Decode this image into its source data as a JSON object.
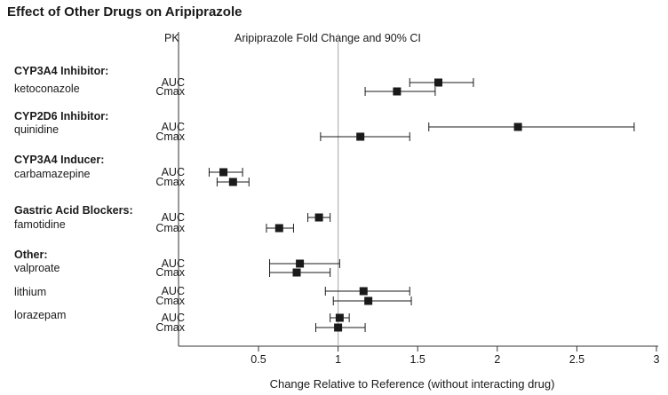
{
  "chart_data": {
    "type": "forest",
    "title": "Effect of Other Drugs on Aripiprazole",
    "pk_header": "PK",
    "ci_header": "Aripiprazole Fold Change and 90% CI",
    "xlabel": "Change Relative to Reference (without interacting drug)",
    "xlim": [
      0.3,
      3.0
    ],
    "xticks": [
      0.5,
      1,
      1.5,
      2,
      2.5,
      3
    ],
    "xtick_labels": [
      "0.5",
      "1",
      "1.5",
      "2",
      "2.5",
      "3"
    ],
    "reference_line": 1,
    "groups": [
      {
        "label": "CYP3A4 Inhibitor:"
      },
      {
        "label": "CYP2D6 Inhibitor:"
      },
      {
        "label": "CYP3A4 Inducer:"
      },
      {
        "label": "Gastric Acid Blockers:"
      },
      {
        "label": "Other:"
      }
    ],
    "drugs": [
      {
        "name": "ketoconazole",
        "group": 0,
        "rows": [
          {
            "pk": "AUC",
            "estimate": 1.63,
            "low": 1.45,
            "high": 1.85
          },
          {
            "pk": "Cmax",
            "estimate": 1.37,
            "low": 1.17,
            "high": 1.61
          }
        ]
      },
      {
        "name": "quinidine",
        "group": 1,
        "rows": [
          {
            "pk": "AUC",
            "estimate": 2.13,
            "low": 1.57,
            "high": 2.86
          },
          {
            "pk": "Cmax",
            "estimate": 1.14,
            "low": 0.89,
            "high": 1.45
          }
        ]
      },
      {
        "name": "carbamazepine",
        "group": 2,
        "rows": [
          {
            "pk": "AUC",
            "estimate": 0.28,
            "low": 0.19,
            "high": 0.4
          },
          {
            "pk": "Cmax",
            "estimate": 0.34,
            "low": 0.24,
            "high": 0.44
          }
        ]
      },
      {
        "name": "famotidine",
        "group": 3,
        "rows": [
          {
            "pk": "AUC",
            "estimate": 0.88,
            "low": 0.81,
            "high": 0.95
          },
          {
            "pk": "Cmax",
            "estimate": 0.63,
            "low": 0.55,
            "high": 0.72
          }
        ]
      },
      {
        "name": "valproate",
        "group": 4,
        "rows": [
          {
            "pk": "AUC",
            "estimate": 0.76,
            "low": 0.57,
            "high": 1.01
          },
          {
            "pk": "Cmax",
            "estimate": 0.74,
            "low": 0.57,
            "high": 0.95
          }
        ]
      },
      {
        "name": "lithium",
        "group": null,
        "rows": [
          {
            "pk": "AUC",
            "estimate": 1.16,
            "low": 0.92,
            "high": 1.45
          },
          {
            "pk": "Cmax",
            "estimate": 1.19,
            "low": 0.97,
            "high": 1.46
          }
        ]
      },
      {
        "name": "lorazepam",
        "group": null,
        "rows": [
          {
            "pk": "AUC",
            "estimate": 1.01,
            "low": 0.95,
            "high": 1.07
          },
          {
            "pk": "Cmax",
            "estimate": 1.0,
            "low": 0.86,
            "high": 1.17
          }
        ]
      }
    ]
  }
}
